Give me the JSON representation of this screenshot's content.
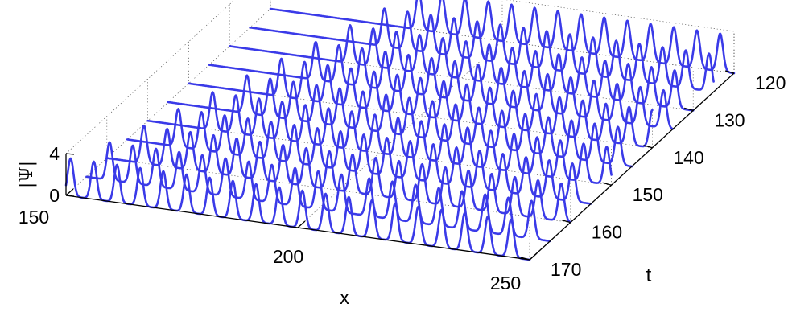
{
  "chart_data": {
    "type": "line",
    "view": "3d-waterfall",
    "title": "",
    "xlabel": "x",
    "ylabel": "t",
    "zlabel": "|Ψ|",
    "xlim": [
      150,
      250
    ],
    "ylim": [
      120,
      170
    ],
    "zlim": [
      0,
      4
    ],
    "x_ticks": [
      "150",
      "200",
      "250"
    ],
    "t_ticks": [
      "120",
      "130",
      "140",
      "150",
      "160",
      "170"
    ],
    "z_ticks": [
      "0",
      "4"
    ],
    "grid": true,
    "line_color": "#3a3ae8",
    "peak_amplitude": 3.6,
    "series": [
      {
        "t": 170,
        "peak_x": [
          151,
          156,
          161,
          166,
          171,
          176,
          181,
          186,
          191,
          196,
          201,
          206,
          211,
          216,
          221,
          226,
          231,
          236,
          241,
          246
        ]
      },
      {
        "t": 165,
        "peak_x": [
          155,
          160,
          165,
          170,
          175,
          180,
          185,
          190,
          195,
          200,
          205,
          211,
          216,
          221,
          226,
          231,
          236,
          241,
          246
        ]
      },
      {
        "t": 160,
        "peak_x": [
          158,
          163,
          168,
          173,
          178,
          183,
          188,
          193,
          198,
          203,
          208,
          213,
          218,
          223,
          228,
          233,
          238,
          243,
          248
        ]
      },
      {
        "t": 155,
        "peak_x": [
          161,
          166,
          171,
          176,
          181,
          186,
          191,
          196,
          201,
          206,
          211,
          216,
          221,
          226,
          231,
          236,
          241,
          246
        ]
      },
      {
        "t": 150,
        "peak_x": [
          164,
          169,
          174,
          179,
          184,
          189,
          194,
          199,
          204,
          209,
          214,
          219,
          224,
          229,
          234,
          239,
          244,
          249
        ]
      },
      {
        "t": 145,
        "peak_x": [
          167,
          172,
          177,
          182,
          187,
          192,
          197,
          202,
          207,
          212,
          217,
          222,
          227,
          232,
          237,
          242,
          247
        ]
      },
      {
        "t": 140,
        "peak_x": [
          170,
          175,
          180,
          185,
          190,
          195,
          200,
          205,
          210,
          215,
          220,
          225,
          230,
          235,
          240,
          245,
          250
        ]
      },
      {
        "t": 135,
        "peak_x": [
          173,
          178,
          183,
          188,
          193,
          198,
          203,
          208,
          213,
          218,
          223,
          228,
          233,
          238,
          243,
          248
        ]
      },
      {
        "t": 130,
        "peak_x": [
          176,
          181,
          186,
          191,
          196,
          201,
          206,
          211,
          216,
          221,
          226,
          231,
          236,
          241,
          246
        ]
      },
      {
        "t": 125,
        "peak_x": [
          179,
          184,
          189,
          194,
          199,
          204,
          209,
          214,
          219,
          224,
          229,
          234,
          239,
          244,
          249
        ]
      },
      {
        "t": 120,
        "peak_x": [
          182,
          187,
          192,
          197,
          202,
          207,
          212,
          217,
          222,
          227,
          232,
          237,
          242,
          247
        ]
      }
    ]
  }
}
